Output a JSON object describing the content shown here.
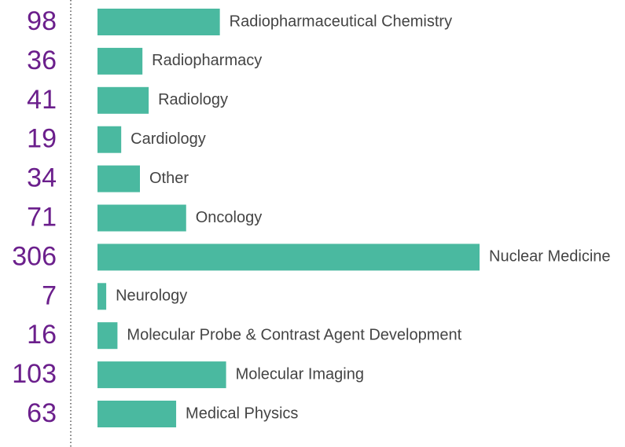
{
  "chart_data": {
    "type": "bar",
    "orientation": "horizontal",
    "color": "#4ab9a0",
    "label_color": "#6b1f8c",
    "categories": [
      "Radiopharmaceutical Chemistry",
      "Radiopharmacy",
      "Radiology",
      "Cardiology",
      "Other",
      "Oncology",
      "Nuclear Medicine",
      "Neurology",
      "Molecular Probe & Contrast Agent Development",
      "Molecular Imaging",
      "Medical Physics"
    ],
    "values": [
      98,
      36,
      41,
      19,
      34,
      71,
      306,
      7,
      16,
      103,
      63
    ]
  }
}
